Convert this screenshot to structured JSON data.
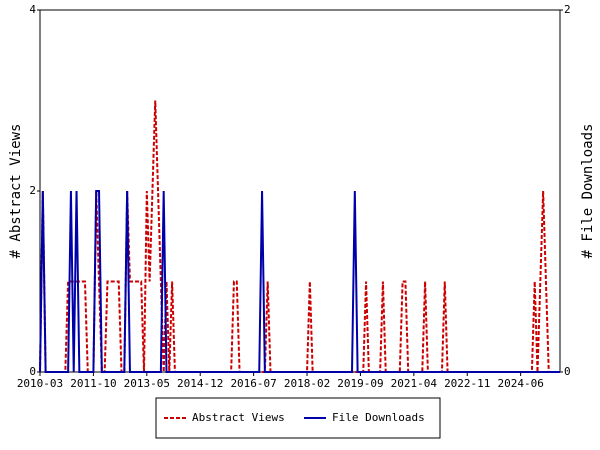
{
  "chart_data": {
    "type": "line",
    "y_label": "# Abstract Views",
    "y2_label": "# File Downloads",
    "x": [
      "2010-03",
      "2010-04",
      "2010-05",
      "2010-06",
      "2010-07",
      "2010-08",
      "2010-09",
      "2010-10",
      "2010-11",
      "2010-12",
      "2011-01",
      "2011-02",
      "2011-03",
      "2011-04",
      "2011-05",
      "2011-06",
      "2011-07",
      "2011-08",
      "2011-09",
      "2011-10",
      "2011-11",
      "2011-12",
      "2012-01",
      "2012-02",
      "2012-03",
      "2012-04",
      "2012-05",
      "2012-06",
      "2012-07",
      "2012-08",
      "2012-09",
      "2012-10",
      "2012-11",
      "2012-12",
      "2013-01",
      "2013-02",
      "2013-03",
      "2013-04",
      "2013-05",
      "2013-06",
      "2013-07",
      "2013-08",
      "2013-09",
      "2013-10",
      "2013-11",
      "2013-12",
      "2014-01",
      "2014-02",
      "2014-03",
      "2014-04",
      "2014-05",
      "2014-06",
      "2014-07",
      "2014-08",
      "2014-09",
      "2014-10",
      "2014-11",
      "2014-12",
      "2015-01",
      "2015-02",
      "2015-03",
      "2015-04",
      "2015-05",
      "2015-06",
      "2015-07",
      "2015-08",
      "2015-09",
      "2015-10",
      "2015-11",
      "2015-12",
      "2016-01",
      "2016-02",
      "2016-03",
      "2016-04",
      "2016-05",
      "2016-06",
      "2016-07",
      "2016-08",
      "2016-09",
      "2016-10",
      "2016-11",
      "2016-12",
      "2017-01",
      "2017-02",
      "2017-03",
      "2017-04",
      "2017-05",
      "2017-06",
      "2017-07",
      "2017-08",
      "2017-09",
      "2017-10",
      "2017-11",
      "2017-12",
      "2018-01",
      "2018-02",
      "2018-03",
      "2018-04",
      "2018-05",
      "2018-06",
      "2018-07",
      "2018-08",
      "2018-09",
      "2018-10",
      "2018-11",
      "2018-12",
      "2019-01",
      "2019-02",
      "2019-03",
      "2019-04",
      "2019-05",
      "2019-06",
      "2019-07",
      "2019-08",
      "2019-09",
      "2019-10",
      "2019-11",
      "2019-12",
      "2020-01",
      "2020-02",
      "2020-03",
      "2020-04",
      "2020-05",
      "2020-06",
      "2020-07",
      "2020-08",
      "2020-09",
      "2020-10",
      "2020-11",
      "2020-12",
      "2021-01",
      "2021-02",
      "2021-03",
      "2021-04",
      "2021-05",
      "2021-06",
      "2021-07",
      "2021-08",
      "2021-09",
      "2021-10",
      "2021-11",
      "2021-12",
      "2022-01",
      "2022-02",
      "2022-03",
      "2022-04",
      "2022-05",
      "2022-06",
      "2022-07",
      "2022-08",
      "2022-09",
      "2022-10",
      "2022-11",
      "2022-12",
      "2023-01",
      "2023-02",
      "2023-03",
      "2023-04",
      "2023-05",
      "2023-06",
      "2023-07",
      "2023-08",
      "2023-09",
      "2023-10",
      "2023-11",
      "2023-12",
      "2024-01",
      "2024-02",
      "2024-03",
      "2024-04",
      "2024-05",
      "2024-06",
      "2024-07",
      "2024-08",
      "2024-09",
      "2024-10",
      "2024-11",
      "2024-12",
      "2025-01",
      "2025-02",
      "2025-03",
      "2025-04",
      "2025-05",
      "2025-06",
      "2025-07",
      "2025-08"
    ],
    "xticks": [
      "2010-03",
      "2011-10",
      "2013-05",
      "2014-12",
      "2016-07",
      "2018-02",
      "2019-09",
      "2021-04",
      "2022-11",
      "2024-06"
    ],
    "ylim": [
      0,
      4
    ],
    "yticks": [
      0,
      2,
      4
    ],
    "y2lim": [
      0,
      2
    ],
    "y2ticks": [
      0,
      2
    ],
    "legend": "bottom",
    "series": [
      {
        "name": "Abstract Views",
        "color": "#cc0000",
        "dash": true,
        "values": [
          0,
          2,
          0,
          0,
          0,
          0,
          0,
          0,
          0,
          0,
          1,
          1,
          1,
          1,
          1,
          1,
          1,
          0,
          0,
          0,
          2,
          1,
          0,
          0,
          1,
          1,
          1,
          1,
          1,
          0,
          0,
          2,
          1,
          1,
          1,
          1,
          1,
          0,
          2,
          1,
          2,
          3,
          2,
          1,
          0,
          1,
          0,
          1,
          0,
          0,
          0,
          0,
          0,
          0,
          0,
          0,
          0,
          0,
          0,
          0,
          0,
          0,
          0,
          0,
          0,
          0,
          0,
          0,
          0,
          1,
          1,
          0,
          0,
          0,
          0,
          0,
          0,
          0,
          0,
          0,
          0,
          1,
          0,
          0,
          0,
          0,
          0,
          0,
          0,
          0,
          0,
          0,
          0,
          0,
          0,
          0,
          1,
          0,
          0,
          0,
          0,
          0,
          0,
          0,
          0,
          0,
          0,
          0,
          0,
          0,
          0,
          0,
          0,
          0,
          0,
          0,
          1,
          0,
          0,
          0,
          0,
          0,
          1,
          0,
          0,
          0,
          0,
          0,
          0,
          1,
          1,
          0,
          0,
          0,
          0,
          0,
          0,
          1,
          0,
          0,
          0,
          0,
          0,
          0,
          1,
          0,
          0,
          0,
          0,
          0,
          0,
          0,
          0,
          0,
          0,
          0,
          0,
          0,
          0,
          0,
          0,
          0,
          0,
          0,
          0,
          0,
          0,
          0,
          0,
          0,
          0,
          0,
          0,
          0,
          0,
          0,
          1,
          0,
          1,
          2,
          1,
          0,
          0,
          0,
          0,
          0
        ]
      },
      {
        "name": "File Downloads",
        "color": "#0000aa",
        "dash": false,
        "axis": "y2",
        "values": [
          0,
          1,
          0,
          0,
          0,
          0,
          0,
          0,
          0,
          0,
          0,
          1,
          0,
          1,
          0,
          0,
          0,
          0,
          0,
          0,
          1,
          1,
          0,
          0,
          0,
          0,
          0,
          0,
          0,
          0,
          0,
          1,
          0,
          0,
          0,
          0,
          0,
          0,
          0,
          0,
          0,
          0,
          0,
          0,
          1,
          0,
          0,
          0,
          0,
          0,
          0,
          0,
          0,
          0,
          0,
          0,
          0,
          0,
          0,
          0,
          0,
          0,
          0,
          0,
          0,
          0,
          0,
          0,
          0,
          0,
          0,
          0,
          0,
          0,
          0,
          0,
          0,
          0,
          0,
          1,
          0,
          0,
          0,
          0,
          0,
          0,
          0,
          0,
          0,
          0,
          0,
          0,
          0,
          0,
          0,
          0,
          0,
          0,
          0,
          0,
          0,
          0,
          0,
          0,
          0,
          0,
          0,
          0,
          0,
          0,
          0,
          0,
          1,
          0,
          0,
          0,
          0,
          0,
          0,
          0,
          0,
          0,
          0,
          0,
          0,
          0,
          0,
          0,
          0,
          0,
          0,
          0,
          0,
          0,
          0,
          0,
          0,
          0,
          0,
          0,
          0,
          0,
          0,
          0,
          0,
          0,
          0,
          0,
          0,
          0,
          0,
          0,
          0,
          0,
          0,
          0,
          0,
          0,
          0,
          0,
          0,
          0,
          0,
          0,
          0,
          0,
          0,
          0,
          0,
          0,
          0,
          0,
          0,
          0,
          0,
          0,
          0,
          0,
          0,
          0,
          0,
          0,
          0,
          0,
          0,
          0
        ]
      }
    ]
  }
}
